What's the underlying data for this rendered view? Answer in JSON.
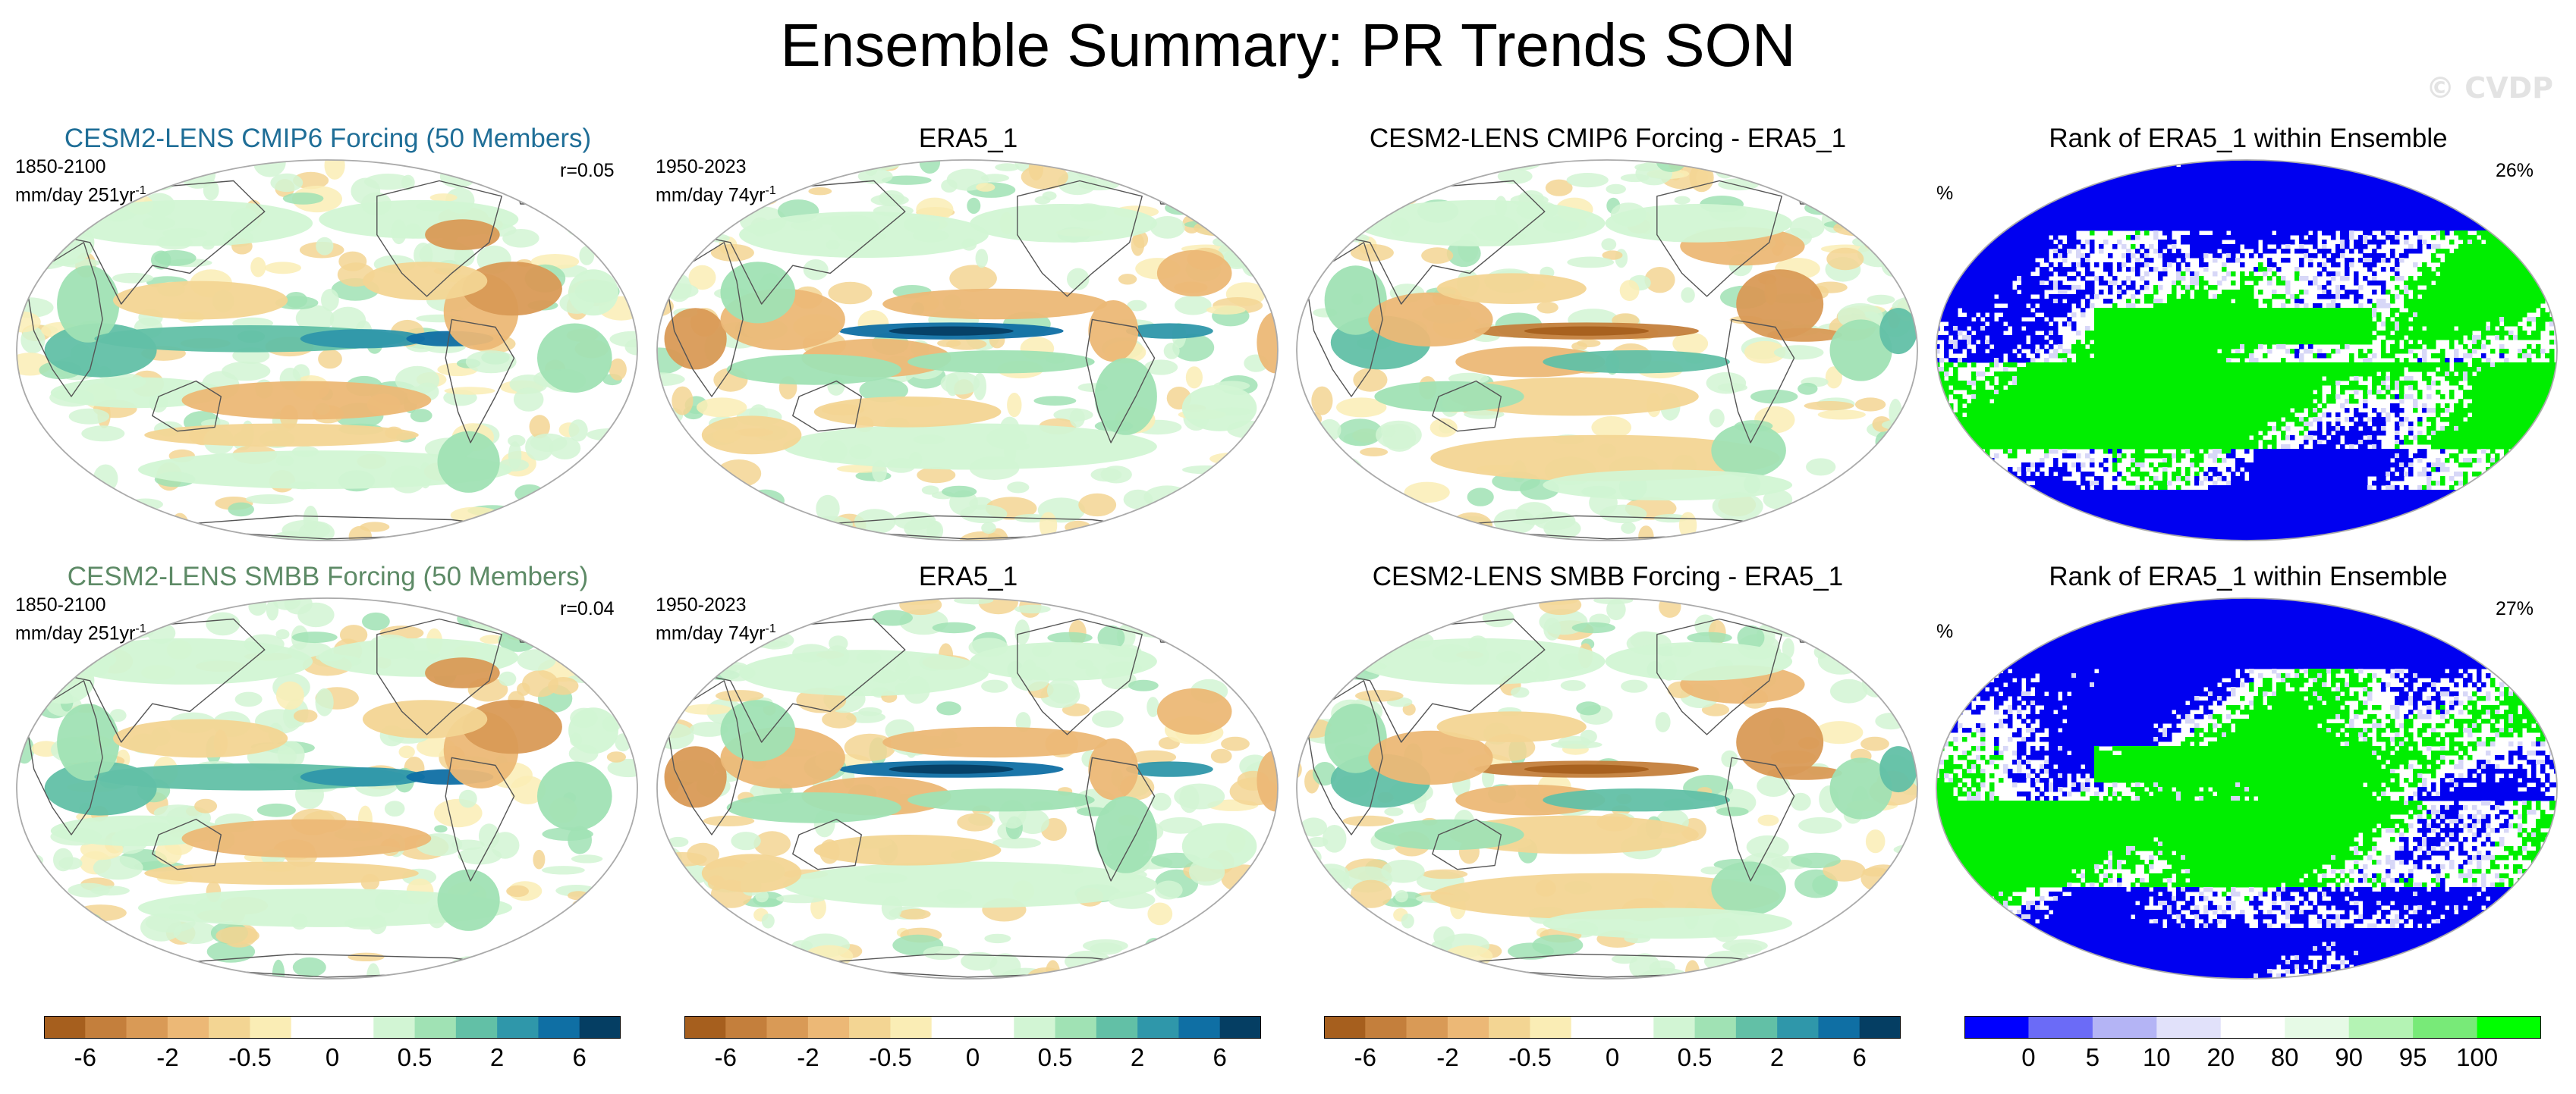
{
  "figure": {
    "title": "Ensemble Summary: PR Trends SON",
    "watermark": "© CVDP"
  },
  "colors": {
    "trend_scale": [
      "#a65f1e",
      "#c47f3c",
      "#d99a56",
      "#ecb876",
      "#f3d593",
      "#faedb5",
      "#ffffff",
      "#ffffff",
      "#d2f5d4",
      "#a0e2b4",
      "#62c0a6",
      "#2f97aa",
      "#0f6fa4",
      "#053e63"
    ],
    "rank_scale": [
      "#0000ff",
      "#6b6bf7",
      "#b4b4f5",
      "#e1e1fa",
      "#ffffff",
      "#e6fae6",
      "#b4f3b4",
      "#78ea78",
      "#00ff00"
    ],
    "cmip6_title": "#1f6e97",
    "smbb_title": "#5d8a66",
    "rank_blue": "#0000f0",
    "rank_green": "#00ee00"
  },
  "rows": [
    {
      "member_title": "CESM2-LENS CMIP6 Forcing (50 Members)",
      "model_period": "1850-2100",
      "model_units": "mm/day 251yr",
      "units_sup": "-1",
      "correlation": "r=0.05",
      "obs_title": "ERA5_1",
      "obs_period": "1950-2023",
      "obs_units": "mm/day 74yr",
      "diff_title": "CESM2-LENS CMIP6 Forcing - ERA5_1",
      "rank_title": "Rank of ERA5_1 within Ensemble",
      "rank_unit": "%",
      "rank_pct": "26%"
    },
    {
      "member_title": "CESM2-LENS SMBB Forcing (50 Members)",
      "model_period": "1850-2100",
      "model_units": "mm/day 251yr",
      "units_sup": "-1",
      "correlation": "r=0.04",
      "obs_title": "ERA5_1",
      "obs_period": "1950-2023",
      "obs_units": "mm/day 74yr",
      "diff_title": "CESM2-LENS SMBB Forcing - ERA5_1",
      "rank_title": "Rank of ERA5_1 within Ensemble",
      "rank_unit": "%",
      "rank_pct": "27%"
    }
  ],
  "colorbars": {
    "trend_labels": [
      "-6",
      "-2",
      "-0.5",
      "0",
      "0.5",
      "2",
      "6"
    ],
    "rank_labels": [
      "0",
      "5",
      "10",
      "20",
      "80",
      "90",
      "95",
      "100"
    ]
  },
  "chart_data": {
    "type": "heatmap",
    "description_of_fields": "Global maps of precipitation trend (SON) shown as filled contours; values not numerically recoverable",
    "trend_levels": [
      -6,
      -2,
      -0.5,
      0,
      0.5,
      2,
      6
    ],
    "rank_levels": [
      0,
      5,
      10,
      20,
      80,
      90,
      95,
      100
    ],
    "panels": [
      {
        "row": 1,
        "col": 1,
        "title": "CESM2-LENS CMIP6 Forcing (50 Members)",
        "period": "1850-2100",
        "r": 0.05
      },
      {
        "row": 1,
        "col": 2,
        "title": "ERA5_1",
        "period": "1950-2023"
      },
      {
        "row": 1,
        "col": 3,
        "title": "CESM2-LENS CMIP6 Forcing - ERA5_1"
      },
      {
        "row": 1,
        "col": 4,
        "title": "Rank of ERA5_1 within Ensemble",
        "rank_percent": 26
      },
      {
        "row": 2,
        "col": 1,
        "title": "CESM2-LENS SMBB Forcing (50 Members)",
        "period": "1850-2100",
        "r": 0.04
      },
      {
        "row": 2,
        "col": 2,
        "title": "ERA5_1",
        "period": "1950-2023"
      },
      {
        "row": 2,
        "col": 3,
        "title": "CESM2-LENS SMBB Forcing - ERA5_1"
      },
      {
        "row": 2,
        "col": 4,
        "title": "Rank of ERA5_1 within Ensemble",
        "rank_percent": 27
      }
    ]
  }
}
